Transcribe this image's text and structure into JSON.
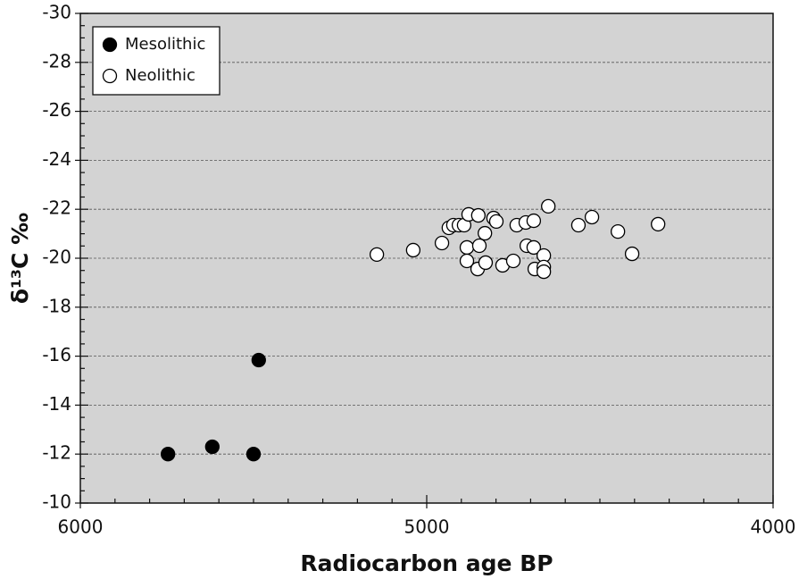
{
  "chart_data": {
    "type": "scatter",
    "x_label": "Radiocarbon age BP",
    "y_label": "δ¹³C ‰",
    "xlim": [
      6000,
      4000
    ],
    "xticks": [
      6000,
      5000,
      4000
    ],
    "ylim": [
      -10,
      -30
    ],
    "yticks": [
      -30,
      -28,
      -26,
      -24,
      -22,
      -20,
      -18,
      -16,
      -14,
      -12,
      -10
    ],
    "grid": true,
    "legend": "upper left",
    "series": [
      {
        "name": "Mesolithic",
        "color": "#000000",
        "x": [
          5747,
          5619,
          5500,
          5485
        ],
        "values": [
          -12.0,
          -12.3,
          -12.0,
          -15.84
        ]
      },
      {
        "name": "Neolithic",
        "color": "#ffffff",
        "x": [
          5144,
          5039,
          4956,
          4936,
          4923,
          4907,
          4892,
          4879,
          4851,
          4884,
          4884,
          4848,
          4853,
          4832,
          4830,
          4807,
          4799,
          4781,
          4750,
          4740,
          4714,
          4711,
          4691,
          4691,
          4688,
          4662,
          4662,
          4662,
          4649,
          4562,
          4523,
          4448,
          4407,
          4332
        ],
        "values": [
          -20.15,
          -20.33,
          -20.62,
          -21.24,
          -21.35,
          -21.35,
          -21.35,
          -21.79,
          -21.75,
          -20.44,
          -19.89,
          -20.51,
          -19.56,
          -21.02,
          -19.82,
          -21.64,
          -21.5,
          -19.71,
          -19.89,
          -21.35,
          -21.46,
          -20.51,
          -21.53,
          -20.44,
          -19.56,
          -20.11,
          -19.64,
          -19.45,
          -22.12,
          -21.35,
          -21.68,
          -21.09,
          -20.18,
          -21.39
        ]
      }
    ]
  }
}
